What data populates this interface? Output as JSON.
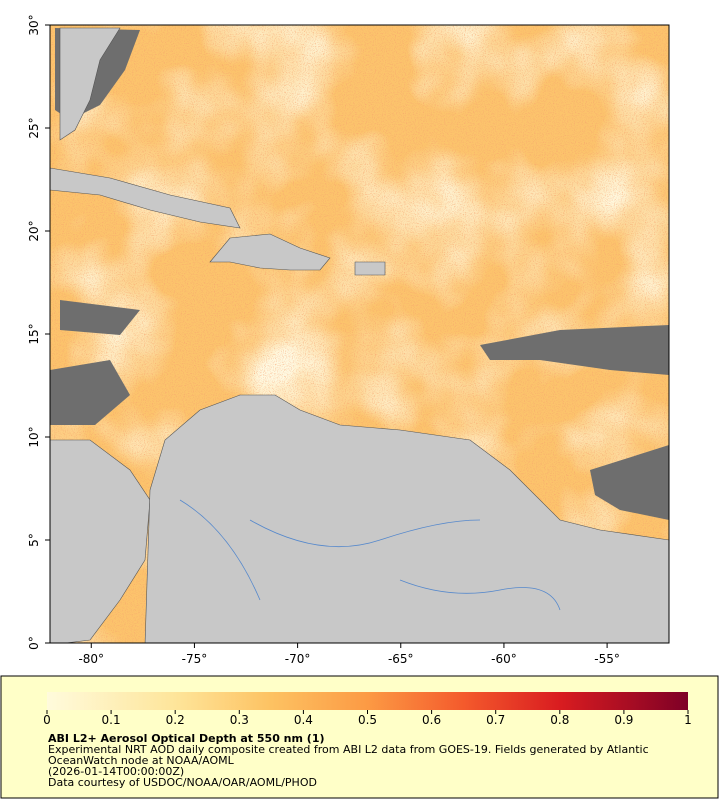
{
  "map": {
    "xlim": [
      -82,
      -52
    ],
    "ylim": [
      0,
      30
    ],
    "xticks": [
      {
        "value": -80,
        "label": "-80°"
      },
      {
        "value": -75,
        "label": "-75°"
      },
      {
        "value": -70,
        "label": "-70°"
      },
      {
        "value": -65,
        "label": "-65°"
      },
      {
        "value": -60,
        "label": "-60°"
      },
      {
        "value": -55,
        "label": "-55°"
      }
    ],
    "yticks": [
      {
        "value": 0,
        "label": "0°"
      },
      {
        "value": 5,
        "label": "5°"
      },
      {
        "value": 10,
        "label": "10°"
      },
      {
        "value": 15,
        "label": "15°"
      },
      {
        "value": 20,
        "label": "20°"
      },
      {
        "value": 25,
        "label": "25°"
      },
      {
        "value": 30,
        "label": "30°"
      }
    ]
  },
  "colorbar": {
    "range": [
      0,
      1
    ],
    "ticks": [
      0,
      0.1,
      0.2,
      0.3,
      0.4,
      0.5,
      0.6,
      0.7,
      0.8,
      0.9,
      1
    ],
    "colormap": [
      {
        "value": 0,
        "color": "#fffbdc"
      },
      {
        "value": 0.2,
        "color": "#fee59a"
      },
      {
        "value": 0.35,
        "color": "#fdc262"
      },
      {
        "value": 0.5,
        "color": "#fc9a44"
      },
      {
        "value": 0.65,
        "color": "#f45a2c"
      },
      {
        "value": 0.8,
        "color": "#d91c20"
      },
      {
        "value": 1,
        "color": "#7e0026"
      }
    ]
  },
  "caption": {
    "title": "ABI L2+ Aerosol Optical Depth at 550 nm (1)",
    "lines": [
      "Experimental NRT AOD daily composite created from ABI L2 data from GOES-19. Fields generated by Atlantic",
      "OceanWatch node at NOAA/AOML",
      "(2026-01-14T00:00:00Z)",
      "Data courtesy of USDOC/NOAA/OAR/AOML/PHOD"
    ]
  }
}
